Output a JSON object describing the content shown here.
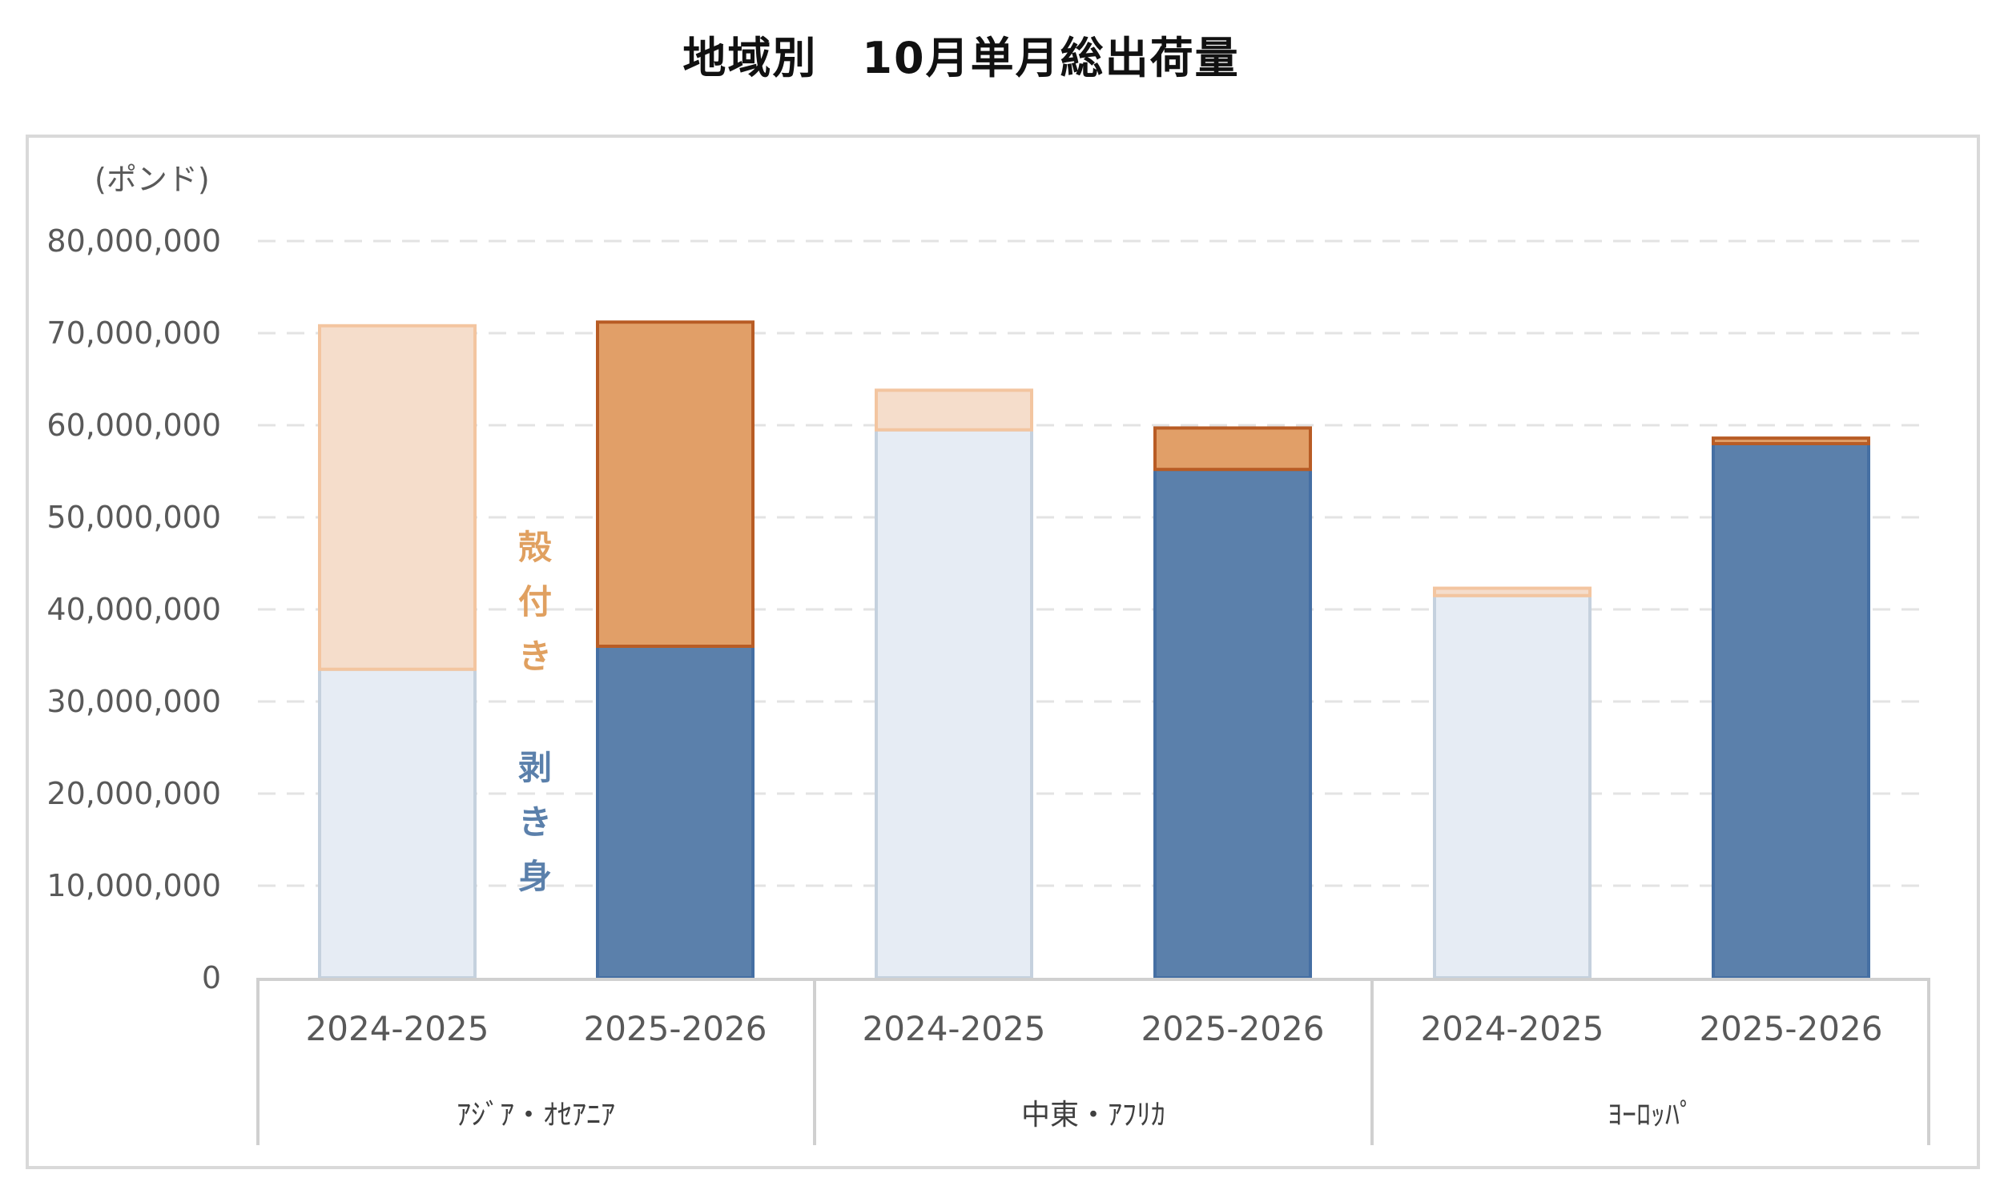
{
  "chart_data": {
    "type": "bar",
    "stacked": true,
    "title": "地域別　10月単月総出荷量",
    "ylabel": "(ポンド)",
    "ylim": [
      0,
      80000000
    ],
    "yticks": [
      "0",
      "10,000,000",
      "20,000,000",
      "30,000,000",
      "40,000,000",
      "50,000,000",
      "60,000,000",
      "70,000,000",
      "80,000,000"
    ],
    "grid": true,
    "groups": [
      "ｱｼﾞｱ・ｵｾｱﾆｱ",
      "中東・ｱﾌﾘｶ",
      "ﾖｰﾛｯﾊﾟ"
    ],
    "categories": [
      "2024-2025",
      "2025-2026",
      "2024-2025",
      "2025-2026",
      "2024-2025",
      "2025-2026"
    ],
    "series": [
      {
        "name": "剥き身",
        "values": [
          33500000,
          36000000,
          59500000,
          55200000,
          41500000,
          58000000
        ]
      },
      {
        "name": "殻付き",
        "values": [
          37300000,
          35200000,
          4300000,
          4500000,
          800000,
          600000
        ]
      }
    ],
    "annotations": {
      "shell": "殻付き",
      "shucked": "剥き身"
    },
    "colors": {
      "shucked_current": "#5b80ab",
      "shucked_prev": "#e6ecf4",
      "shell_current": "#e19f68",
      "shell_prev": "#f5ddcb",
      "shell_current_stroke": "#b85c25",
      "shell_prev_stroke": "#f3c5a0",
      "shucked_current_stroke": "#456fa3",
      "shucked_prev_stroke": "#c5d1de",
      "shell_label": "#e0a060",
      "shucked_label": "#5b80ab"
    }
  }
}
